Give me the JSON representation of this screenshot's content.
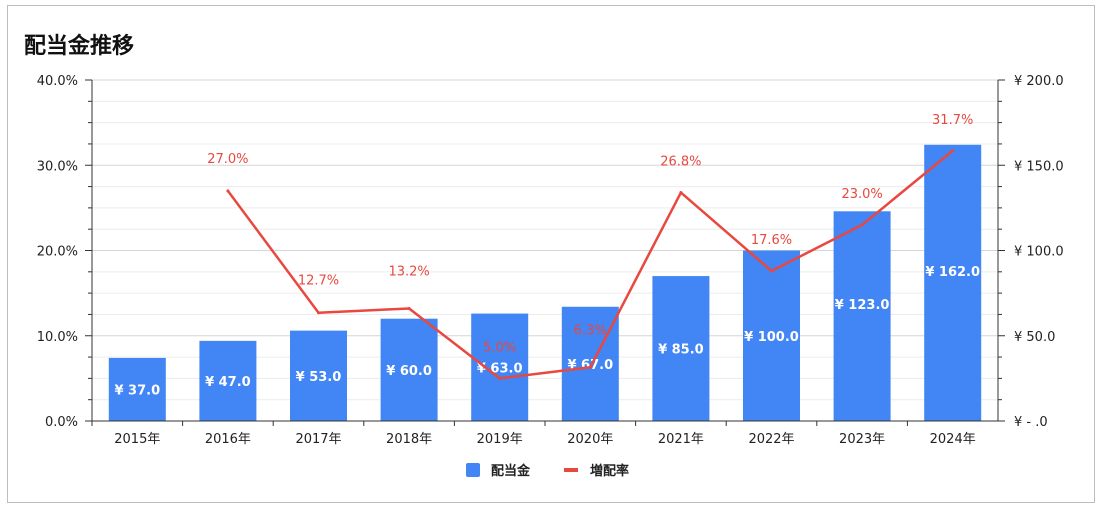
{
  "chart_data": {
    "type": "bar",
    "title": "配当金推移",
    "categories": [
      "2015年",
      "2016年",
      "2017年",
      "2018年",
      "2019年",
      "2020年",
      "2021年",
      "2022年",
      "2023年",
      "2024年"
    ],
    "series": [
      {
        "name": "配当金",
        "type": "bar",
        "axis": "right",
        "values": [
          37.0,
          47.0,
          53.0,
          60.0,
          63.0,
          67.0,
          85.0,
          100.0,
          123.0,
          162.0
        ],
        "labels": [
          "¥ 37.0",
          "¥ 47.0",
          "¥ 53.0",
          "¥ 60.0",
          "¥ 63.0",
          "¥ 67.0",
          "¥ 85.0",
          "¥ 100.0",
          "¥ 123.0",
          "¥ 162.0"
        ],
        "color": "#4285f4"
      },
      {
        "name": "増配率",
        "type": "line",
        "axis": "left",
        "values": [
          null,
          27.0,
          12.7,
          13.2,
          5.0,
          6.3,
          26.8,
          17.6,
          23.0,
          31.7
        ],
        "labels": [
          "",
          "27.0%",
          "12.7%",
          "13.2%",
          "5.0%",
          "6.3%",
          "26.8%",
          "17.6%",
          "23.0%",
          "31.7%"
        ],
        "color": "#e8483f"
      }
    ],
    "left_axis": {
      "ylim": [
        0,
        40
      ],
      "ticks": [
        0,
        10,
        20,
        30,
        40
      ],
      "tick_labels": [
        "0.0%",
        "10.0%",
        "20.0%",
        "30.0%",
        "40.0%"
      ]
    },
    "right_axis": {
      "ylim": [
        0,
        200
      ],
      "ticks": [
        0,
        50,
        100,
        150,
        200
      ],
      "tick_labels": [
        "¥ -  .0",
        "¥ 50.0",
        "¥ 100.0",
        "¥ 150.0",
        "¥ 200.0"
      ]
    },
    "legend": {
      "position": "bottom",
      "entries": [
        "配当金",
        "増配率"
      ]
    },
    "grid": true
  }
}
